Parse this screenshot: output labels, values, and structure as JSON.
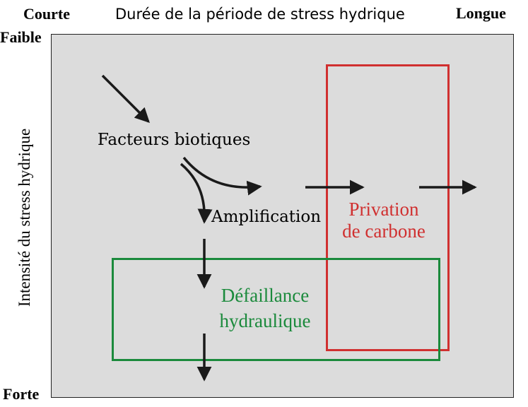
{
  "axes": {
    "x_title": "Durée de la période de stress hydrique",
    "x_start": "Courte",
    "x_end": "Longue",
    "y_title": "Intensité du stress hydrique",
    "y_start": "Faible",
    "y_end": "Forte"
  },
  "nodes": {
    "biotic": "Facteurs biotiques",
    "amplification": "Amplification",
    "carbon_line1": "Privation",
    "carbon_line2": "de carbone",
    "hydraulic_line1": "Défaillance",
    "hydraulic_line2": "hydraulique"
  },
  "colors": {
    "panel_background": "#dcdcdc",
    "carbon_zone": "#d03030",
    "hydraulic_zone": "#1b8a3c",
    "arrows": "#1a1a1a"
  }
}
